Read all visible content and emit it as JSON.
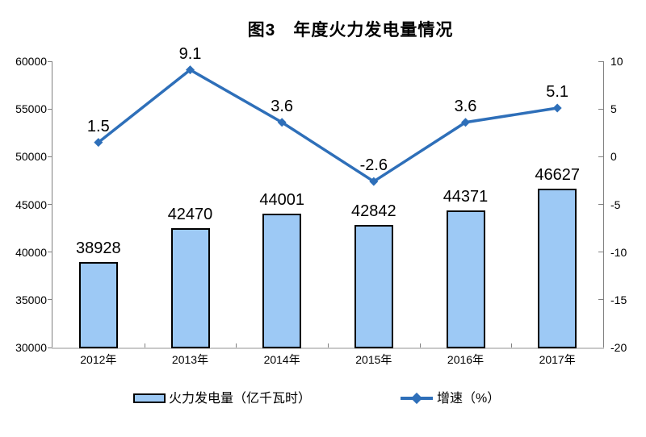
{
  "chart_data": {
    "type": "combo",
    "title": "图3　年度火力发电量情况",
    "categories": [
      "2012年",
      "2013年",
      "2014年",
      "2015年",
      "2016年",
      "2017年"
    ],
    "series": [
      {
        "name": "火力发电量",
        "chart_type": "bar",
        "axis": "left",
        "legend_label": "火力发电量（亿千瓦时）",
        "values": [
          38928,
          42470,
          44001,
          42842,
          44371,
          46627
        ],
        "fill_color": "#9DC9F5",
        "border_color": "#000000"
      },
      {
        "name": "增速",
        "chart_type": "line",
        "axis": "right",
        "legend_label": "增速（%）",
        "values": [
          1.5,
          9.1,
          3.6,
          -2.6,
          3.6,
          5.1
        ],
        "line_color": "#2E6FB9",
        "marker": "diamond"
      }
    ],
    "left_axis": {
      "min": 30000,
      "max": 60000,
      "step": 5000,
      "tick_labels": [
        "30000",
        "35000",
        "40000",
        "45000",
        "50000",
        "55000",
        "60000"
      ]
    },
    "right_axis": {
      "min": -20,
      "max": 10,
      "step": 5,
      "tick_labels": [
        "-20",
        "-15",
        "-10",
        "-5",
        "0",
        "5",
        "10"
      ]
    },
    "grid": false,
    "legend_position": "bottom",
    "background": "#FFFFFF"
  }
}
